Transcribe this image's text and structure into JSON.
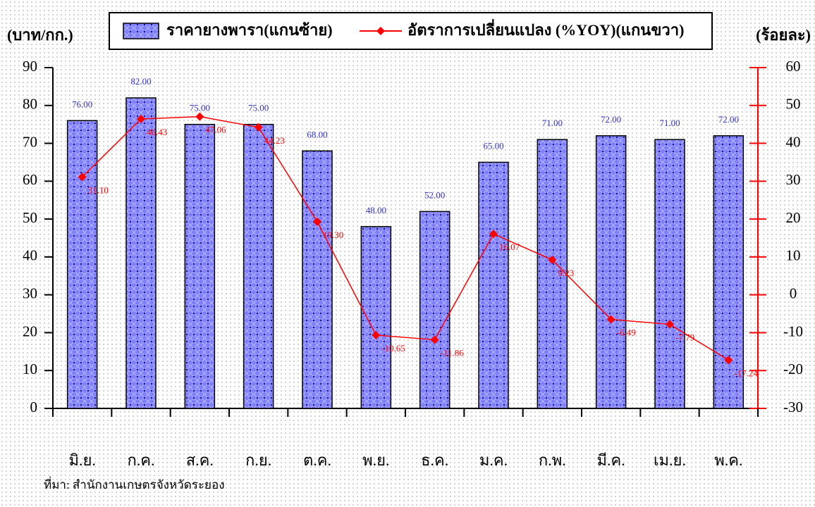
{
  "chart_data": {
    "type": "bar",
    "categories": [
      "มิ.ย.",
      "ก.ค.",
      "ส.ค.",
      "ก.ย.",
      "ต.ค.",
      "พ.ย.",
      "ธ.ค.",
      "ม.ค.",
      "ก.พ.",
      "มี.ค.",
      "เม.ย.",
      "พ.ค."
    ],
    "series": [
      {
        "name": "ราคายางพารา(แกนซ้าย)",
        "type": "bar",
        "color": "#3333cc",
        "values": [
          76,
          82,
          75,
          75,
          68,
          48,
          52,
          65,
          71,
          72,
          71,
          72
        ],
        "value_labels": [
          "76.00",
          "82.00",
          "75.00",
          "75.00",
          "68.00",
          "48.00",
          "52.00",
          "65.00",
          "71.00",
          "72.00",
          "71.00",
          "72.00"
        ]
      },
      {
        "name": "อัตราการเปลี่ยนแปลง (%YOY)(แกนขวา)",
        "type": "line",
        "axis": "y2",
        "color": "#ff0000",
        "values": [
          31.1,
          46.43,
          47.06,
          44.23,
          19.3,
          -10.65,
          -11.86,
          16.07,
          9.23,
          -6.49,
          -7.79,
          -17.24
        ],
        "value_labels": [
          "31.10",
          "46.43",
          "47.06",
          "44.23",
          "19.30",
          "-10.65",
          "-11.86",
          "16.07",
          "9.23",
          "-6.49",
          "-7.79",
          "-17.24"
        ]
      }
    ],
    "ylabel": "(บาท/กก.)",
    "y2label": "(ร้อยละ)",
    "ylim": [
      0,
      90
    ],
    "yticks": [
      0,
      10,
      20,
      30,
      40,
      50,
      60,
      70,
      80,
      90
    ],
    "y2lim": [
      -30,
      60
    ],
    "y2ticks": [
      -30,
      -20,
      -10,
      0,
      10,
      20,
      30,
      40,
      50,
      60
    ],
    "source": "ที่มา: สำนักงานเกษตรจังหวัดระยอง"
  }
}
